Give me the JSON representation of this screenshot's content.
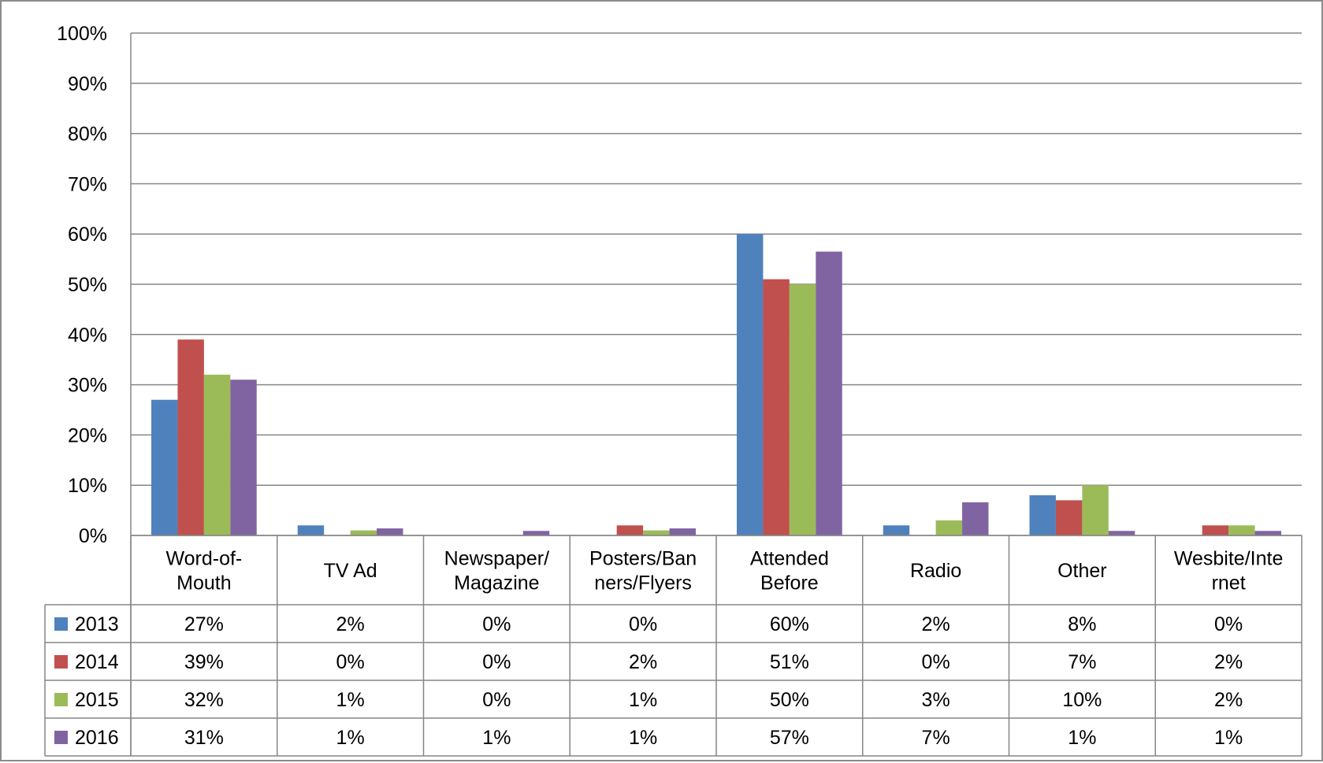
{
  "chart_data": {
    "type": "bar",
    "title": "",
    "xlabel": "",
    "ylabel": "",
    "ylim": [
      0,
      1
    ],
    "y_ticks": [
      "0%",
      "10%",
      "20%",
      "30%",
      "40%",
      "50%",
      "60%",
      "70%",
      "80%",
      "90%",
      "100%"
    ],
    "grid": true,
    "legend": "data-table",
    "categories": [
      [
        "Word-of-",
        "Mouth"
      ],
      [
        "TV Ad"
      ],
      [
        "Newspaper/",
        "Magazine"
      ],
      [
        "Posters/Ban",
        "ners/Flyers"
      ],
      [
        "Attended",
        "Before"
      ],
      [
        "Radio"
      ],
      [
        "Other"
      ],
      [
        "Wesbite/Inte",
        "rnet"
      ]
    ],
    "series": [
      {
        "name": "2013",
        "color": "#4F81BD",
        "values": [
          0.27,
          0.02,
          0.0,
          0.0,
          0.6,
          0.02,
          0.08,
          0.0
        ],
        "labels": [
          "27%",
          "2%",
          "0%",
          "0%",
          "60%",
          "2%",
          "8%",
          "0%"
        ]
      },
      {
        "name": "2014",
        "color": "#C0504D",
        "values": [
          0.39,
          0.0,
          0.0,
          0.02,
          0.51,
          0.0,
          0.07,
          0.02
        ],
        "labels": [
          "39%",
          "0%",
          "0%",
          "2%",
          "51%",
          "0%",
          "7%",
          "2%"
        ]
      },
      {
        "name": "2015",
        "color": "#9BBB59",
        "values": [
          0.32,
          0.01,
          0.0,
          0.01,
          0.5,
          0.03,
          0.1,
          0.02
        ],
        "labels": [
          "32%",
          "1%",
          "0%",
          "1%",
          "50%",
          "3%",
          "10%",
          "2%"
        ]
      },
      {
        "name": "2016",
        "color": "#8064A2",
        "values": [
          0.31,
          0.014,
          0.009,
          0.014,
          0.565,
          0.066,
          0.009,
          0.009
        ],
        "labels": [
          "31%",
          "1%",
          "1%",
          "1%",
          "57%",
          "7%",
          "1%",
          "1%"
        ]
      }
    ]
  }
}
